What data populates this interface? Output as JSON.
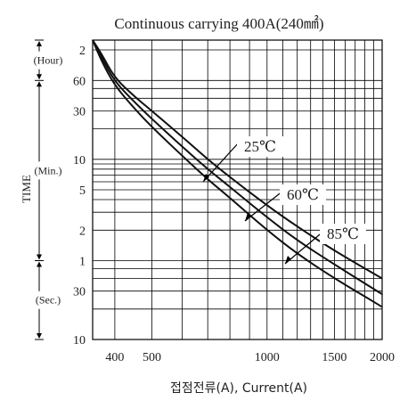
{
  "chart_data": {
    "type": "line",
    "title": "Continuous carrying 400A(240㎟)",
    "xlabel": "접점전류(A), Current(A)",
    "ylabel": "TIME",
    "x_scale": "log",
    "y_scale": "log",
    "xlim": [
      350,
      2000
    ],
    "ylim_seconds": [
      10,
      9000
    ],
    "grid": true,
    "x_ticks": [
      {
        "value": 400,
        "label": "400"
      },
      {
        "value": 500,
        "label": "500"
      },
      {
        "value": 1000,
        "label": "1000"
      },
      {
        "value": 1500,
        "label": "1500"
      },
      {
        "value": 2000,
        "label": "2000"
      }
    ],
    "y_ticks": [
      {
        "seconds": 7200,
        "label": "2"
      },
      {
        "seconds": 3600,
        "label": "60"
      },
      {
        "seconds": 1800,
        "label": "30"
      },
      {
        "seconds": 600,
        "label": "10"
      },
      {
        "seconds": 300,
        "label": "5"
      },
      {
        "seconds": 120,
        "label": "2"
      },
      {
        "seconds": 60,
        "label": "1"
      },
      {
        "seconds": 30,
        "label": "30"
      },
      {
        "seconds": 10,
        "label": "10"
      }
    ],
    "unit_bands": [
      {
        "label": "(Hour)",
        "from_seconds": 3600,
        "to_seconds": 9000
      },
      {
        "label": "(Min.)",
        "from_seconds": 60,
        "to_seconds": 3600
      },
      {
        "label": "(Sec.)",
        "from_seconds": 10,
        "to_seconds": 60
      }
    ],
    "series": [
      {
        "name": "25℃",
        "x": [
          350,
          370,
          400,
          450,
          500,
          600,
          700,
          800,
          1000,
          1200,
          1500,
          2000
        ],
        "y": [
          9000,
          6500,
          3800,
          2500,
          1800,
          1000,
          600,
          400,
          210,
          130,
          75,
          40
        ]
      },
      {
        "name": "60℃",
        "x": [
          350,
          370,
          400,
          450,
          500,
          600,
          700,
          800,
          1000,
          1200,
          1500,
          2000
        ],
        "y": [
          9000,
          6000,
          3500,
          2200,
          1500,
          800,
          480,
          320,
          160,
          95,
          55,
          28
        ]
      },
      {
        "name": "85℃",
        "x": [
          350,
          370,
          400,
          450,
          500,
          600,
          700,
          800,
          1000,
          1200,
          1500,
          2000
        ],
        "y": [
          9000,
          5500,
          3200,
          1900,
          1250,
          650,
          380,
          250,
          120,
          70,
          40,
          21
        ]
      }
    ],
    "annotations": [
      {
        "text": "25℃",
        "series": "25℃"
      },
      {
        "text": "60℃",
        "series": "60℃"
      },
      {
        "text": "85℃",
        "series": "85℃"
      }
    ]
  }
}
